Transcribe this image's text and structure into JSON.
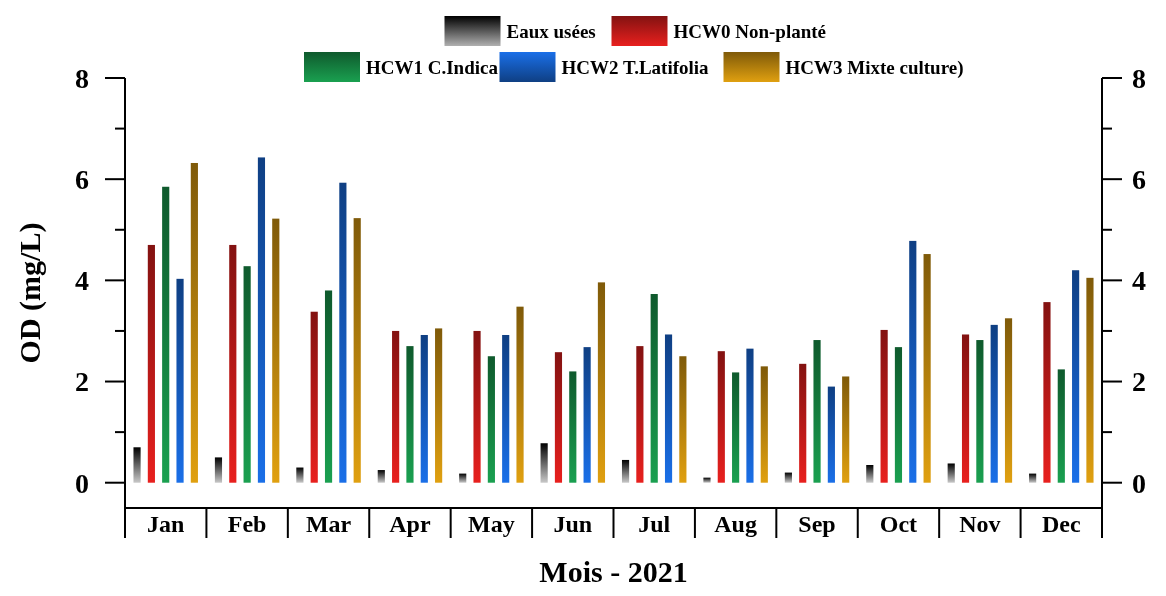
{
  "chart_data": {
    "type": "bar",
    "xlabel": "Mois - 2021",
    "ylabel": "OD (mg/L)",
    "categories": [
      "Jan",
      "Feb",
      "Mar",
      "Apr",
      "May",
      "Jun",
      "Jul",
      "Aug",
      "Sep",
      "Oct",
      "Nov",
      "Dec"
    ],
    "series": [
      {
        "name": "Eaux usées",
        "color": "#808080",
        "values": [
          0.7,
          0.5,
          0.3,
          0.25,
          0.18,
          0.78,
          0.45,
          0.1,
          0.2,
          0.35,
          0.38,
          0.18
        ]
      },
      {
        "name": "HCW0  Non-planté",
        "color": "#e8201e",
        "values": [
          4.7,
          4.7,
          3.38,
          3.0,
          3.0,
          2.58,
          2.7,
          2.6,
          2.35,
          3.02,
          2.93,
          3.57
        ]
      },
      {
        "name": "HCW1 C.Indica",
        "color": "#1aa050",
        "values": [
          5.85,
          4.28,
          3.8,
          2.7,
          2.5,
          2.2,
          3.73,
          2.18,
          2.82,
          2.68,
          2.82,
          2.24
        ]
      },
      {
        "name": "HCW2 T.Latifolia",
        "color": "#1a6fe8",
        "values": [
          4.03,
          6.43,
          5.93,
          2.92,
          2.92,
          2.68,
          2.93,
          2.65,
          1.9,
          4.78,
          3.12,
          4.2
        ]
      },
      {
        "name": "HCW3 Mixte culture)",
        "color": "#e0a010",
        "values": [
          6.32,
          5.22,
          5.23,
          3.05,
          3.48,
          3.96,
          2.5,
          2.3,
          2.1,
          4.52,
          3.25,
          4.05
        ]
      }
    ],
    "ylim": [
      -0.5,
      8
    ],
    "yticks": [
      0,
      {
        "value": 1,
        "label": null
      },
      2,
      {
        "value": 3,
        "label": null
      },
      4,
      {
        "value": 5,
        "label": null
      },
      6,
      {
        "value": 7,
        "label": null
      },
      8
    ],
    "y2lim": [
      -0.5,
      8
    ],
    "y2ticks": [
      0,
      {
        "value": 1,
        "label": null
      },
      2,
      {
        "value": 3,
        "label": null
      },
      4,
      {
        "value": 5,
        "label": null
      },
      6,
      {
        "value": 7,
        "label": null
      },
      8
    ],
    "legend": "top",
    "grid": false
  }
}
